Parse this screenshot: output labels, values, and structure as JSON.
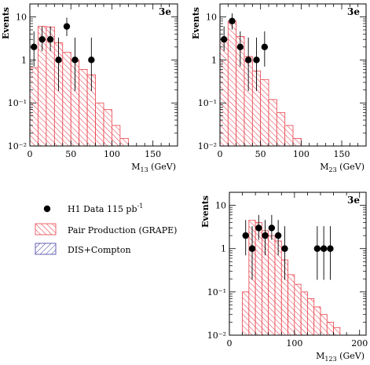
{
  "chart_data": [
    {
      "type": "bar",
      "panel": "M13",
      "tag": "3e",
      "ylabel": "Events",
      "xlabel_main": "M",
      "xlabel_sub": "13",
      "xlabel_unit": " (GeV)",
      "xlim": [
        0,
        180
      ],
      "ylim_log": [
        0.01,
        20
      ],
      "yscale": "log",
      "x_ticks": [
        0,
        50,
        100,
        150
      ],
      "y_ticks": [
        "10",
        "1",
        "10^-1",
        "10^-2"
      ],
      "bin_width": 10,
      "histogram": {
        "name": "Pair Production (GRAPE)",
        "bin_edges": [
          0,
          10,
          20,
          30,
          40,
          50,
          60,
          70,
          80,
          90,
          100,
          110,
          120
        ],
        "values": [
          0.65,
          6.0,
          5.8,
          2.5,
          1.5,
          1.0,
          0.6,
          0.45,
          0.1,
          0.07,
          0.03,
          0.015
        ]
      },
      "data_points": {
        "name": "H1 Data 115 pb^-1",
        "x": [
          5,
          15,
          25,
          35,
          45,
          55,
          75
        ],
        "y": [
          2,
          3,
          3,
          1,
          6,
          1,
          1
        ],
        "yerr_low": [
          1.3,
          1.4,
          1.4,
          0.81,
          2.4,
          0.81,
          0.81
        ],
        "yerr_high": [
          2.6,
          3.0,
          3.0,
          2.3,
          3.6,
          2.3,
          2.3
        ]
      }
    },
    {
      "type": "bar",
      "panel": "M23",
      "tag": "3e",
      "ylabel": "Events",
      "xlabel_main": "M",
      "xlabel_sub": "23",
      "xlabel_unit": " (GeV)",
      "xlim": [
        0,
        180
      ],
      "ylim_log": [
        0.01,
        20
      ],
      "yscale": "log",
      "x_ticks": [
        0,
        50,
        100,
        150
      ],
      "y_ticks": [
        "10",
        "1",
        "10^-1",
        "10^-2"
      ],
      "bin_width": 10,
      "histogram": {
        "name": "Pair Production (GRAPE)",
        "bin_edges": [
          0,
          10,
          20,
          30,
          40,
          50,
          60,
          70,
          80,
          90,
          100
        ],
        "values": [
          3.0,
          8.0,
          3.5,
          1.2,
          0.55,
          0.35,
          0.12,
          0.06,
          0.03,
          0.015
        ]
      },
      "data_points": {
        "name": "H1 Data 115 pb^-1",
        "x": [
          5,
          15,
          25,
          35,
          45,
          55
        ],
        "y": [
          3,
          8,
          2,
          1,
          1,
          2
        ],
        "yerr_low": [
          1.4,
          2.9,
          1.3,
          0.81,
          0.81,
          1.3
        ],
        "yerr_high": [
          3.0,
          4.0,
          2.6,
          2.3,
          2.3,
          2.6
        ]
      }
    },
    {
      "type": "bar",
      "panel": "M123",
      "tag": "3e",
      "ylabel": "Events",
      "xlabel_main": "M",
      "xlabel_sub": "123",
      "xlabel_unit": " (GeV)",
      "xlim": [
        0,
        210
      ],
      "ylim_log": [
        0.01,
        20
      ],
      "yscale": "log",
      "x_ticks": [
        0,
        100,
        200
      ],
      "y_ticks": [
        "10",
        "1",
        "10^-1",
        "10^-2"
      ],
      "bin_width": 10,
      "histogram": {
        "name": "Pair Production (GRAPE)",
        "bin_edges": [
          20,
          30,
          40,
          50,
          60,
          70,
          80,
          90,
          100,
          110,
          120,
          130,
          140,
          150,
          160,
          170,
          180
        ],
        "values": [
          0.1,
          4.5,
          4.0,
          2.6,
          2.0,
          1.5,
          0.55,
          0.25,
          0.15,
          0.1,
          0.07,
          0.045,
          0.03,
          0.02,
          0.015,
          0.01
        ]
      },
      "data_points": {
        "name": "H1 Data 115 pb^-1",
        "x": [
          25,
          35,
          45,
          55,
          65,
          75,
          85,
          135,
          145,
          155
        ],
        "y": [
          2,
          1,
          3,
          2,
          3,
          2,
          1,
          1,
          1,
          1
        ],
        "yerr_low": [
          1.3,
          0.81,
          1.4,
          1.3,
          1.4,
          1.3,
          0.81,
          0.81,
          0.81,
          0.81
        ],
        "yerr_high": [
          2.6,
          2.3,
          3.0,
          2.6,
          3.0,
          2.6,
          2.3,
          2.3,
          2.3,
          2.3
        ]
      }
    }
  ],
  "legend": {
    "data_label": "H1 Data 115 pb",
    "data_label_sup": "-1",
    "pair_label": "Pair Production (GRAPE)",
    "dis_label": "DIS+Compton"
  },
  "colors": {
    "pair_hatch": "#e8404a",
    "dis_hatch": "#3c3ca0",
    "data": "#000000"
  }
}
